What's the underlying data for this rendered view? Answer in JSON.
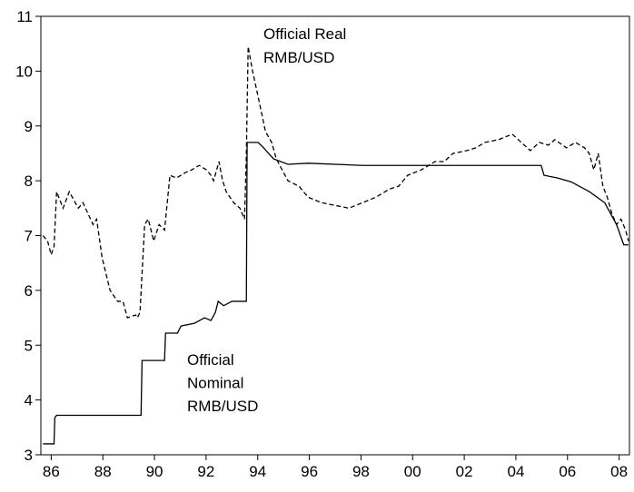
{
  "chart_data": {
    "type": "line",
    "annotations": [
      [
        "Official Real",
        "RMB/USD"
      ],
      [
        "Official",
        "Nominal",
        "RMB/USD"
      ]
    ],
    "series": [
      {
        "name": "Official Nominal RMB/USD",
        "color": "#000000",
        "dash": false,
        "x": [
          85.68,
          86.11,
          86.14,
          86.21,
          89.48,
          89.52,
          90.39,
          90.43,
          90.89,
          91.03,
          91.55,
          91.94,
          92.19,
          92.36,
          92.47,
          92.68,
          93.0,
          93.56,
          93.59,
          94.01,
          94.19,
          94.61,
          95.17,
          95.95,
          98.06,
          104.98,
          105.09,
          105.62,
          106.14,
          106.85,
          107.44,
          107.9,
          108.18,
          108.36
        ],
        "values": [
          3.2,
          3.2,
          3.68,
          3.72,
          3.72,
          4.72,
          4.72,
          5.22,
          5.22,
          5.35,
          5.4,
          5.5,
          5.45,
          5.6,
          5.8,
          5.72,
          5.8,
          5.8,
          8.7,
          8.7,
          8.62,
          8.4,
          8.3,
          8.32,
          8.28,
          8.28,
          8.1,
          8.05,
          7.98,
          7.8,
          7.6,
          7.2,
          6.83,
          6.83
        ]
      },
      {
        "name": "Official Real RMB/USD",
        "color": "#000000",
        "dash": true,
        "x": [
          85.68,
          85.86,
          86.0,
          86.11,
          86.21,
          86.46,
          86.7,
          87.05,
          87.23,
          87.62,
          87.76,
          87.97,
          88.28,
          88.57,
          88.78,
          88.95,
          89.27,
          89.34,
          89.44,
          89.62,
          89.76,
          89.97,
          90.18,
          90.39,
          90.6,
          90.85,
          91.2,
          91.45,
          91.73,
          92.01,
          92.19,
          92.29,
          92.5,
          92.64,
          92.78,
          93.07,
          93.31,
          93.49,
          93.56,
          93.63,
          93.8,
          93.94,
          94.12,
          94.3,
          94.54,
          94.72,
          95.17,
          95.6,
          95.95,
          96.47,
          97.0,
          97.53,
          98.06,
          98.58,
          99.11,
          99.46,
          99.81,
          100.34,
          100.87,
          101.22,
          101.57,
          102.1,
          102.45,
          102.8,
          103.33,
          103.86,
          104.21,
          104.56,
          104.91,
          105.26,
          105.51,
          105.96,
          106.31,
          106.66,
          106.84,
          107.02,
          107.19,
          107.37,
          107.54,
          107.72,
          107.9,
          108.07,
          108.25,
          108.36
        ],
        "values": [
          7.0,
          6.9,
          6.65,
          6.8,
          7.8,
          7.5,
          7.8,
          7.5,
          7.6,
          7.2,
          7.3,
          6.6,
          6.0,
          5.8,
          5.8,
          5.5,
          5.55,
          5.5,
          5.6,
          7.2,
          7.3,
          6.9,
          7.2,
          7.1,
          8.1,
          8.05,
          8.15,
          8.2,
          8.28,
          8.2,
          8.1,
          8.0,
          8.35,
          8.0,
          7.8,
          7.6,
          7.5,
          7.3,
          8.5,
          10.45,
          10.0,
          9.7,
          9.3,
          8.9,
          8.7,
          8.4,
          8.0,
          7.9,
          7.7,
          7.6,
          7.55,
          7.5,
          7.6,
          7.7,
          7.85,
          7.9,
          8.1,
          8.2,
          8.35,
          8.35,
          8.5,
          8.55,
          8.6,
          8.7,
          8.75,
          8.85,
          8.7,
          8.55,
          8.7,
          8.65,
          8.75,
          8.6,
          8.7,
          8.6,
          8.5,
          8.2,
          8.5,
          7.9,
          7.7,
          7.4,
          7.2,
          7.3,
          7.1,
          6.9
        ]
      }
    ],
    "xlim": [
      85.6,
      108.4
    ],
    "xticks": [
      86,
      88,
      90,
      92,
      94,
      96,
      98,
      {
        "value": 100,
        "label": "00"
      },
      {
        "value": 102,
        "label": "02"
      },
      {
        "value": 104,
        "label": "04"
      },
      {
        "value": 106,
        "label": "06"
      },
      {
        "value": 108,
        "label": "08"
      }
    ],
    "ylim": [
      3,
      11
    ],
    "yticks": [
      3,
      4,
      5,
      6,
      7,
      8,
      9,
      10,
      11
    ],
    "grid": false
  }
}
